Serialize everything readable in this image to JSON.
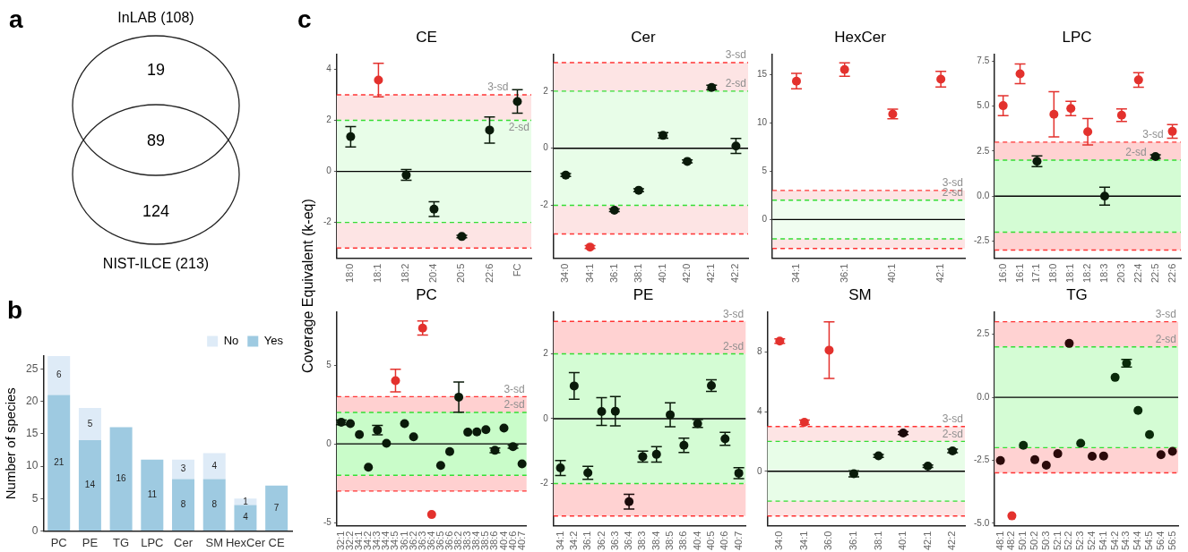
{
  "chart_data": [
    {
      "type": "other",
      "annotations": [
        "a",
        "InLAB (108)",
        "19",
        "89",
        "124",
        "NIST-ILCE (213)"
      ]
    },
    {
      "type": "bar",
      "ylabel": "Number of species",
      "annotations": [
        "b"
      ],
      "categories": [
        "PC",
        "PE",
        "TG",
        "LPC",
        "Cer",
        "SM",
        "HexCer",
        "CE"
      ],
      "stacked": true,
      "legend": "top",
      "data_labels": true,
      "ylim": [
        0,
        27
      ],
      "yticks": [
        0,
        5,
        10,
        15,
        20,
        25
      ],
      "series": [
        {
          "name": "Yes",
          "color": "#9ecae1",
          "values": [
            21,
            14,
            16,
            11,
            8,
            8,
            4,
            7
          ]
        },
        {
          "name": "No",
          "color": "#deebf7",
          "values": [
            6,
            5,
            null,
            null,
            3,
            4,
            1,
            null
          ]
        }
      ]
    },
    {
      "type": "scatter",
      "title": "CE",
      "ylabel": "Coverage Equivalent (k-eq)",
      "annotations": [
        "c"
      ],
      "marker": "circle",
      "categories": [
        "18:0",
        "18:1",
        "18:2",
        "20:4",
        "20:5",
        "22:6",
        "FC"
      ],
      "values": [
        1.36,
        3.58,
        -0.14,
        -1.48,
        -2.55,
        1.62,
        2.74
      ],
      "errors": [
        0.4,
        0.66,
        0.21,
        0.29,
        0.05,
        0.51,
        0.46
      ],
      "colors": [
        "#0a1a0a",
        "#e3312d",
        "#0a1a0a",
        "#0a1a0a",
        "#0a1a0a",
        "#0a1a0a",
        "#0a1a0a"
      ],
      "ylim": [
        -3.4,
        4.6
      ],
      "yticks": [
        -2,
        0,
        2,
        4
      ],
      "bands": [
        {
          "axis": "y",
          "from": -2,
          "to": 2,
          "color": "#e8fde8"
        },
        {
          "axis": "y",
          "from": 2,
          "to": 3,
          "color": "#fde4e4"
        },
        {
          "axis": "y",
          "from": -3,
          "to": -2,
          "color": "#fde4e4"
        }
      ],
      "ref_lines": [
        {
          "axis": "y",
          "value": 3,
          "label": "3-sd",
          "color": "#ff3333",
          "line_style": "dashed"
        },
        {
          "axis": "y",
          "value": 2,
          "label": "2-sd",
          "color": "#33dd33",
          "line_style": "dashed"
        },
        {
          "axis": "y",
          "value": -2,
          "color": "#33dd33",
          "line_style": "dashed"
        },
        {
          "axis": "y",
          "value": -3,
          "color": "#ff3333",
          "line_style": "dashed"
        },
        {
          "axis": "y",
          "value": 0,
          "color": "#000000",
          "line_style": "solid"
        }
      ]
    },
    {
      "type": "scatter",
      "title": "Cer",
      "marker": "circle",
      "categories": [
        "34:0",
        "34:1",
        "36:1",
        "38:1",
        "40:1",
        "42:0",
        "42:1",
        "42:2"
      ],
      "values": [
        -0.94,
        -3.46,
        -2.17,
        -1.47,
        0.45,
        -0.46,
        2.13,
        0.08
      ],
      "errors": [
        0.05,
        0.05,
        0.05,
        0.05,
        0.1,
        0.05,
        0.08,
        0.26
      ],
      "colors": [
        "#0a1a0a",
        "#e3312d",
        "#0a1a0a",
        "#0a1a0a",
        "#0a1a0a",
        "#0a1a0a",
        "#0a1a0a",
        "#0a1a0a"
      ],
      "ylim": [
        -3.85,
        3.3
      ],
      "yticks": [
        -2,
        0,
        2
      ],
      "bands": [
        {
          "axis": "y",
          "from": -2,
          "to": 2,
          "color": "#e8fde8"
        },
        {
          "axis": "y",
          "from": 2,
          "to": 3,
          "color": "#fde4e4"
        },
        {
          "axis": "y",
          "from": -3,
          "to": -2,
          "color": "#fde4e4"
        }
      ],
      "ref_lines": [
        {
          "axis": "y",
          "value": 3,
          "label": "3-sd",
          "color": "#ff3333",
          "line_style": "dashed"
        },
        {
          "axis": "y",
          "value": 2,
          "label": "2-sd",
          "color": "#33dd33",
          "line_style": "dashed"
        },
        {
          "axis": "y",
          "value": -2,
          "color": "#33dd33",
          "line_style": "dashed"
        },
        {
          "axis": "y",
          "value": -3,
          "color": "#ff3333",
          "line_style": "dashed"
        },
        {
          "axis": "y",
          "value": 0,
          "color": "#000000",
          "line_style": "solid"
        }
      ]
    },
    {
      "type": "scatter",
      "title": "HexCer",
      "marker": "circle",
      "categories": [
        "34:1",
        "36:1",
        "40:1",
        "42:1"
      ],
      "values": [
        14.3,
        15.5,
        10.9,
        14.5
      ],
      "errors": [
        0.8,
        0.7,
        0.5,
        0.8
      ],
      "colors": [
        "#e3312d",
        "#e3312d",
        "#e3312d",
        "#e3312d"
      ],
      "ylim": [
        -4,
        17.1
      ],
      "yticks": [
        0,
        5,
        10,
        15
      ],
      "bands": [
        {
          "axis": "y",
          "from": -2,
          "to": 2,
          "color": "#f0fdf0"
        },
        {
          "axis": "y",
          "from": 2,
          "to": 3,
          "color": "#fde4e4"
        },
        {
          "axis": "y",
          "from": -3,
          "to": -2,
          "color": "#fde4e4"
        }
      ],
      "ref_lines": [
        {
          "axis": "y",
          "value": 3,
          "label": "3-sd",
          "color": "#ff3333",
          "line_style": "dashed"
        },
        {
          "axis": "y",
          "value": 2,
          "label": "2-sd",
          "color": "#33dd33",
          "line_style": "dashed"
        },
        {
          "axis": "y",
          "value": -2,
          "color": "#33dd33",
          "line_style": "dashed"
        },
        {
          "axis": "y",
          "value": -3,
          "color": "#ff3333",
          "line_style": "dashed"
        },
        {
          "axis": "y",
          "value": 0,
          "color": "#000000",
          "line_style": "solid"
        }
      ]
    },
    {
      "type": "scatter",
      "title": "LPC",
      "marker": "circle",
      "categories": [
        "16:0",
        "16:1",
        "17:1",
        "18:0",
        "18:1",
        "18:2",
        "18:3",
        "20:3",
        "22:4",
        "22:5",
        "22:6"
      ],
      "values": [
        5.03,
        6.8,
        1.94,
        4.55,
        4.87,
        3.58,
        0.0,
        4.5,
        6.46,
        2.2,
        3.6
      ],
      "errors": [
        0.55,
        0.55,
        0.3,
        1.26,
        0.4,
        0.73,
        0.5,
        0.35,
        0.4,
        0.1,
        0.38
      ],
      "colors": [
        "#e3312d",
        "#e3312d",
        "#0a1a0a",
        "#e3312d",
        "#e3312d",
        "#e3312d",
        "#0a1a0a",
        "#e3312d",
        "#e3312d",
        "#0a1a0a",
        "#e3312d"
      ],
      "ylim": [
        -3.45,
        7.9
      ],
      "yticks": [
        -2.5,
        {
          "value": 0,
          "label": "0.0"
        },
        2.5,
        {
          "value": 5,
          "label": "5.0"
        },
        7.5
      ],
      "bands": [
        {
          "axis": "y",
          "from": -2,
          "to": 2,
          "color": "#d4fcd4"
        },
        {
          "axis": "y",
          "from": 2,
          "to": 3,
          "color": "#ffd2d2"
        },
        {
          "axis": "y",
          "from": -3,
          "to": -2,
          "color": "#ffd2d2"
        }
      ],
      "ref_lines": [
        {
          "axis": "y",
          "value": 3,
          "label": "3-sd",
          "color": "#ff3333",
          "line_style": "dashed"
        },
        {
          "axis": "y",
          "value": 2,
          "label": "2-sd",
          "color": "#33dd33",
          "line_style": "dashed"
        },
        {
          "axis": "y",
          "value": -2,
          "color": "#33dd33",
          "line_style": "dashed"
        },
        {
          "axis": "y",
          "value": -3,
          "color": "#ff3333",
          "line_style": "dashed"
        },
        {
          "axis": "y",
          "value": 0,
          "color": "#000000",
          "line_style": "solid"
        }
      ]
    },
    {
      "type": "scatter",
      "title": "PC",
      "marker": "circle",
      "categories": [
        "32:1",
        "32:2",
        "34:1",
        "34:2",
        "34:3",
        "34:4",
        "34:5",
        "36:1",
        "36:2",
        "36:3",
        "36:4",
        "36:5",
        "36:6",
        "38:2",
        "38:3",
        "38:4",
        "38:5",
        "38:6",
        "40:4",
        "40:6",
        "40:7"
      ],
      "values": [
        1.37,
        1.29,
        0.59,
        -1.48,
        0.88,
        0.04,
        4.02,
        1.29,
        0.45,
        7.36,
        -4.49,
        -1.37,
        -0.49,
        2.97,
        0.74,
        0.76,
        0.9,
        -0.41,
        1.0,
        -0.18,
        -1.27
      ],
      "errors": [
        0.15,
        null,
        null,
        null,
        0.3,
        null,
        0.72,
        null,
        null,
        0.45,
        null,
        null,
        null,
        0.96,
        null,
        null,
        null,
        0.15,
        null,
        0.1,
        null
      ],
      "colors": [
        "#0a1a0a",
        "#0a1a0a",
        "#0a1a0a",
        "#0a1a0a",
        "#0a1a0a",
        "#0a1a0a",
        "#e3312d",
        "#0a1a0a",
        "#0a1a0a",
        "#e3312d",
        "#e3312d",
        "#0a1a0a",
        "#0a1a0a",
        "#0a1a0a",
        "#0a1a0a",
        "#0a1a0a",
        "#0a1a0a",
        "#0a1a0a",
        "#0a1a0a",
        "#0a1a0a",
        "#0a1a0a"
      ],
      "ylim": [
        -5.2,
        8.4
      ],
      "yticks": [
        -5,
        0,
        5
      ],
      "bands": [
        {
          "axis": "y",
          "from": -2,
          "to": 2,
          "color": "#c9fcc9"
        },
        {
          "axis": "y",
          "from": 2,
          "to": 3,
          "color": "#ffd0d0"
        },
        {
          "axis": "y",
          "from": -3,
          "to": -2,
          "color": "#ffd0d0"
        }
      ],
      "ref_lines": [
        {
          "axis": "y",
          "value": 3,
          "label": "3-sd",
          "color": "#ff3333",
          "line_style": "dashed"
        },
        {
          "axis": "y",
          "value": 2,
          "label": "2-sd",
          "color": "#33dd33",
          "line_style": "dashed"
        },
        {
          "axis": "y",
          "value": -2,
          "color": "#33dd33",
          "line_style": "dashed"
        },
        {
          "axis": "y",
          "value": -3,
          "color": "#ff3333",
          "line_style": "dashed"
        },
        {
          "axis": "y",
          "value": 0,
          "color": "#000000",
          "line_style": "solid"
        }
      ]
    },
    {
      "type": "scatter",
      "title": "PE",
      "marker": "circle",
      "categories": [
        "34:1",
        "34:2",
        "36:1",
        "36:2",
        "36:3",
        "36:4",
        "38:3",
        "38:4",
        "38:5",
        "38:6",
        "40:4",
        "40:5",
        "40:6",
        "40:7"
      ],
      "values": [
        -1.52,
        1.01,
        -1.67,
        0.22,
        0.23,
        -2.56,
        -1.17,
        -1.1,
        0.12,
        -0.82,
        -0.15,
        1.02,
        -0.62,
        -1.68
      ],
      "errors": [
        0.23,
        0.41,
        0.2,
        0.43,
        0.45,
        0.23,
        0.17,
        0.24,
        0.37,
        0.22,
        0.12,
        0.18,
        0.2,
        0.17
      ],
      "colors": [
        "#0a1a0a",
        "#0a1a0a",
        "#0a1a0a",
        "#0a1a0a",
        "#0a1a0a",
        "#1a0a0a",
        "#0a1a0a",
        "#0a1a0a",
        "#0a1a0a",
        "#0a1a0a",
        "#0a1a0a",
        "#0a1a0a",
        "#0a1a0a",
        "#0a1a0a"
      ],
      "ylim": [
        -3.3,
        3.3
      ],
      "yticks": [
        -2,
        0,
        2
      ],
      "bands": [
        {
          "axis": "y",
          "from": -2,
          "to": 2,
          "color": "#d4fcd4"
        },
        {
          "axis": "y",
          "from": 2,
          "to": 3,
          "color": "#ffd2d2"
        },
        {
          "axis": "y",
          "from": -3,
          "to": -2,
          "color": "#ffd2d2"
        }
      ],
      "ref_lines": [
        {
          "axis": "y",
          "value": 3,
          "label": "3-sd",
          "color": "#ff3333",
          "line_style": "dashed"
        },
        {
          "axis": "y",
          "value": 2,
          "label": "2-sd",
          "color": "#33dd33",
          "line_style": "dashed"
        },
        {
          "axis": "y",
          "value": -2,
          "color": "#33dd33",
          "line_style": "dashed"
        },
        {
          "axis": "y",
          "value": -3,
          "color": "#ff3333",
          "line_style": "dashed"
        },
        {
          "axis": "y",
          "value": 0,
          "color": "#000000",
          "line_style": "solid"
        }
      ]
    },
    {
      "type": "scatter",
      "title": "SM",
      "marker": "circle",
      "categories": [
        "34:0",
        "34:1",
        "36:0",
        "36:1",
        "38:1",
        "40:1",
        "42:1",
        "42:2"
      ],
      "values": [
        8.73,
        3.28,
        8.12,
        -0.17,
        1.03,
        2.56,
        0.34,
        1.36
      ],
      "errors": [
        0.15,
        0.15,
        1.9,
        0.2,
        0.1,
        0.1,
        0.08,
        0.12
      ],
      "colors": [
        "#e3312d",
        "#e3312d",
        "#e3312d",
        "#0a1a0a",
        "#0a1a0a",
        "#1a0a0a",
        "#0a1a0a",
        "#0a1a0a"
      ],
      "ylim": [
        -3.65,
        10.7
      ],
      "yticks": [
        0,
        4,
        8
      ],
      "bands": [
        {
          "axis": "y",
          "from": -2,
          "to": 2,
          "color": "#e8fde8"
        },
        {
          "axis": "y",
          "from": 2,
          "to": 3,
          "color": "#fde4e4"
        },
        {
          "axis": "y",
          "from": -3,
          "to": -2,
          "color": "#fde4e4"
        }
      ],
      "ref_lines": [
        {
          "axis": "y",
          "value": 3,
          "label": "3-sd",
          "color": "#ff3333",
          "line_style": "dashed"
        },
        {
          "axis": "y",
          "value": 2,
          "label": "2-sd",
          "color": "#33dd33",
          "line_style": "dashed"
        },
        {
          "axis": "y",
          "value": -2,
          "color": "#33dd33",
          "line_style": "dashed"
        },
        {
          "axis": "y",
          "value": -3,
          "color": "#ff3333",
          "line_style": "dashed"
        },
        {
          "axis": "y",
          "value": 0,
          "color": "#000000",
          "line_style": "solid"
        }
      ]
    },
    {
      "type": "scatter",
      "title": "TG",
      "marker": "circle",
      "categories": [
        "48:1",
        "48:2",
        "50:1",
        "50:2",
        "50:3",
        "52:1",
        "52:2",
        "52:3",
        "52:4",
        "54:1",
        "54:2",
        "54:3",
        "54:4",
        "54:5",
        "56:4",
        "56:5"
      ],
      "values": [
        -2.51,
        -4.71,
        -1.91,
        -2.48,
        -2.7,
        -2.24,
        2.14,
        -1.83,
        -2.34,
        -2.33,
        0.79,
        1.35,
        -0.52,
        -1.48,
        -2.28,
        -2.15
      ],
      "errors": [
        null,
        null,
        null,
        null,
        null,
        null,
        null,
        null,
        null,
        null,
        null,
        0.15,
        null,
        null,
        null,
        null
      ],
      "colors": [
        "#2b0a0a",
        "#e3312d",
        "#0a2a0a",
        "#2b0a0a",
        "#2b0a0a",
        "#2b0a0a",
        "#2b0a0a",
        "#0a2a0a",
        "#2b0a0a",
        "#2b0a0a",
        "#0a2a0a",
        "#0a2a0a",
        "#0a2a0a",
        "#0a2a0a",
        "#2b0a0a",
        "#2b0a0a"
      ],
      "ylim": [
        -5.1,
        3.4
      ],
      "yticks": [
        {
          "value": -5,
          "label": "-5.0"
        },
        -2.5,
        {
          "value": 0,
          "label": "0.0"
        },
        2.5
      ],
      "bands": [
        {
          "axis": "y",
          "from": -2,
          "to": 2,
          "color": "#d4fcd4"
        },
        {
          "axis": "y",
          "from": 2,
          "to": 3,
          "color": "#ffd2d2"
        },
        {
          "axis": "y",
          "from": -3,
          "to": -2,
          "color": "#ffd2d2"
        }
      ],
      "ref_lines": [
        {
          "axis": "y",
          "value": 3,
          "label": "3-sd",
          "color": "#ff3333",
          "line_style": "dashed"
        },
        {
          "axis": "y",
          "value": 2,
          "label": "2-sd",
          "color": "#33dd33",
          "line_style": "dashed"
        },
        {
          "axis": "y",
          "value": -2,
          "color": "#33dd33",
          "line_style": "dashed"
        },
        {
          "axis": "y",
          "value": -3,
          "color": "#ff3333",
          "line_style": "dashed"
        },
        {
          "axis": "y",
          "value": 0,
          "color": "#000000",
          "line_style": "solid"
        }
      ]
    }
  ]
}
